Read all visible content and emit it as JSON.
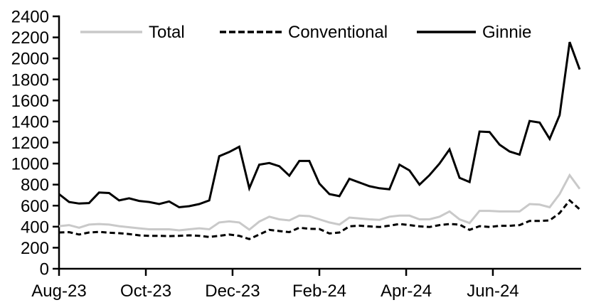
{
  "chart_data": {
    "type": "line",
    "title": "",
    "xlabel": "",
    "ylabel": "",
    "x_frequency": "weekly",
    "x_count": 53,
    "x_tick_labels": [
      "Aug-23",
      "Oct-23",
      "Dec-23",
      "Feb-24",
      "Apr-24",
      "Jun-24"
    ],
    "x_tick_week_positions": [
      0,
      8.67,
      17.33,
      26,
      34.67,
      43.33
    ],
    "ylim": [
      0,
      2400
    ],
    "y_tick_step": 200,
    "y_tick_labels": [
      "0",
      "200",
      "400",
      "600",
      "800",
      "1000",
      "1200",
      "1400",
      "1600",
      "1800",
      "2000",
      "2200",
      "2400"
    ],
    "grid": false,
    "legend_position": "top",
    "axis_color": "#000000",
    "series": [
      {
        "name": "Total",
        "color": "#c9c9c9",
        "dash": "solid",
        "values": [
          405,
          415,
          390,
          420,
          425,
          420,
          405,
          395,
          385,
          375,
          375,
          375,
          365,
          375,
          385,
          375,
          440,
          450,
          440,
          372,
          448,
          495,
          470,
          460,
          505,
          500,
          470,
          440,
          420,
          487,
          478,
          470,
          465,
          495,
          505,
          505,
          470,
          470,
          495,
          545,
          470,
          435,
          550,
          550,
          545,
          545,
          545,
          615,
          610,
          585,
          710,
          890,
          760
        ]
      },
      {
        "name": "Conventional",
        "color": "#000000",
        "dash": "dashed",
        "values": [
          345,
          348,
          325,
          345,
          350,
          343,
          338,
          330,
          318,
          313,
          313,
          310,
          313,
          318,
          313,
          302,
          313,
          325,
          313,
          282,
          325,
          370,
          358,
          348,
          390,
          380,
          378,
          335,
          345,
          403,
          410,
          403,
          397,
          410,
          425,
          415,
          403,
          397,
          415,
          425,
          420,
          370,
          405,
          397,
          408,
          408,
          415,
          455,
          455,
          460,
          530,
          650,
          565
        ]
      },
      {
        "name": "Ginnie",
        "color": "#000000",
        "dash": "solid",
        "values": [
          710,
          635,
          620,
          625,
          725,
          720,
          650,
          670,
          645,
          635,
          615,
          640,
          585,
          595,
          615,
          650,
          1070,
          1110,
          1160,
          765,
          990,
          1005,
          975,
          885,
          1025,
          1025,
          810,
          710,
          690,
          855,
          820,
          785,
          765,
          755,
          990,
          935,
          800,
          890,
          1000,
          1135,
          865,
          825,
          1305,
          1300,
          1180,
          1115,
          1085,
          1405,
          1390,
          1235,
          1460,
          2155,
          1895
        ]
      }
    ],
    "legend": [
      "Total",
      "Conventional",
      "Ginnie"
    ]
  }
}
